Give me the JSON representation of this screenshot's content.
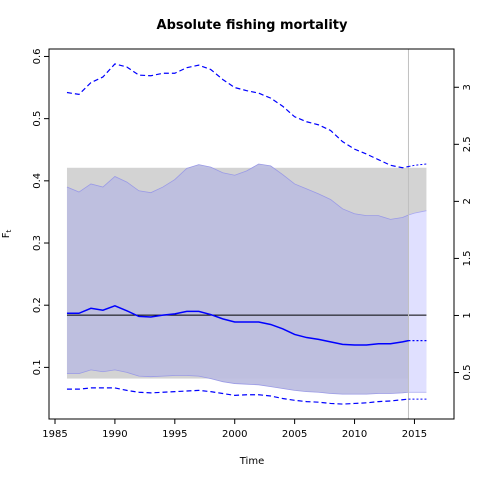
{
  "chart_data": {
    "type": "line",
    "title": "Absolute fishing mortality",
    "xlabel": "Time",
    "ylabel": "F",
    "ylabel_subscript": "t",
    "xlim": [
      1984.5,
      2018.3
    ],
    "ylim": [
      0.017,
      0.612
    ],
    "xticks": [
      1985,
      1990,
      1995,
      2000,
      2005,
      2010,
      2015
    ],
    "yticks": [
      0.1,
      0.2,
      0.3,
      0.4,
      0.5,
      0.6
    ],
    "right_axis": {
      "scale_factor": 5.45,
      "ticks": [
        0.5,
        1,
        1.5,
        2,
        2.5,
        3
      ],
      "tick_labels": [
        "0.5",
        "1",
        "1.5",
        "2",
        "2.5",
        "3"
      ]
    },
    "colors": {
      "series": "#0000ff",
      "ci_band": "#bcbde0",
      "forecast_band": "#e0e0ff",
      "ref_band": "#d3d3d3",
      "ref_line": "#000000",
      "vline": "#c0c0c0"
    },
    "reference": {
      "fmsy": 0.184,
      "ci_lower": 0.082,
      "ci_upper": 0.421,
      "x_range": [
        1986,
        2016
      ]
    },
    "last_observation_year": 2014.5,
    "x": [
      1986,
      1987,
      1988,
      1989,
      1990,
      1991,
      1992,
      1993,
      1994,
      1995,
      1996,
      1997,
      1998,
      1999,
      2000,
      2001,
      2002,
      2003,
      2004,
      2005,
      2006,
      2007,
      2008,
      2009,
      2010,
      2011,
      2012,
      2013,
      2014,
      2014.5
    ],
    "series": [
      {
        "name": "estimate",
        "values": [
          0.187,
          0.187,
          0.195,
          0.192,
          0.199,
          0.191,
          0.182,
          0.181,
          0.184,
          0.186,
          0.19,
          0.19,
          0.185,
          0.178,
          0.173,
          0.173,
          0.173,
          0.169,
          0.162,
          0.153,
          0.148,
          0.145,
          0.141,
          0.137,
          0.136,
          0.136,
          0.138,
          0.138,
          0.141,
          0.143
        ]
      },
      {
        "name": "upper",
        "values": [
          0.39,
          0.382,
          0.395,
          0.39,
          0.407,
          0.398,
          0.384,
          0.381,
          0.39,
          0.402,
          0.42,
          0.426,
          0.422,
          0.413,
          0.409,
          0.416,
          0.427,
          0.424,
          0.41,
          0.395,
          0.387,
          0.379,
          0.37,
          0.355,
          0.347,
          0.344,
          0.344,
          0.338,
          0.341,
          0.345
        ]
      },
      {
        "name": "lower",
        "values": [
          0.09,
          0.09,
          0.096,
          0.093,
          0.096,
          0.092,
          0.086,
          0.085,
          0.086,
          0.087,
          0.087,
          0.086,
          0.082,
          0.077,
          0.074,
          0.073,
          0.072,
          0.069,
          0.066,
          0.063,
          0.061,
          0.06,
          0.058,
          0.057,
          0.057,
          0.057,
          0.058,
          0.058,
          0.059,
          0.06
        ]
      },
      {
        "name": "upper_outer",
        "values": [
          0.542,
          0.539,
          0.558,
          0.567,
          0.588,
          0.583,
          0.57,
          0.569,
          0.573,
          0.573,
          0.582,
          0.586,
          0.579,
          0.563,
          0.55,
          0.545,
          0.541,
          0.533,
          0.52,
          0.503,
          0.495,
          0.49,
          0.481,
          0.463,
          0.451,
          0.443,
          0.434,
          0.425,
          0.421,
          0.423
        ]
      },
      {
        "name": "lower_outer",
        "values": [
          0.065,
          0.065,
          0.067,
          0.067,
          0.067,
          0.063,
          0.06,
          0.059,
          0.06,
          0.061,
          0.062,
          0.063,
          0.061,
          0.058,
          0.055,
          0.056,
          0.056,
          0.054,
          0.05,
          0.047,
          0.045,
          0.044,
          0.042,
          0.041,
          0.042,
          0.043,
          0.045,
          0.046,
          0.048,
          0.049
        ]
      }
    ],
    "forecast": {
      "x": [
        2014.5,
        2015,
        2016
      ],
      "estimate": [
        0.143,
        0.143,
        0.143
      ],
      "upper": [
        0.345,
        0.348,
        0.352
      ],
      "lower": [
        0.06,
        0.06,
        0.06
      ],
      "upper_outer": [
        0.423,
        0.425,
        0.427
      ],
      "lower_outer": [
        0.049,
        0.049,
        0.049
      ]
    }
  }
}
